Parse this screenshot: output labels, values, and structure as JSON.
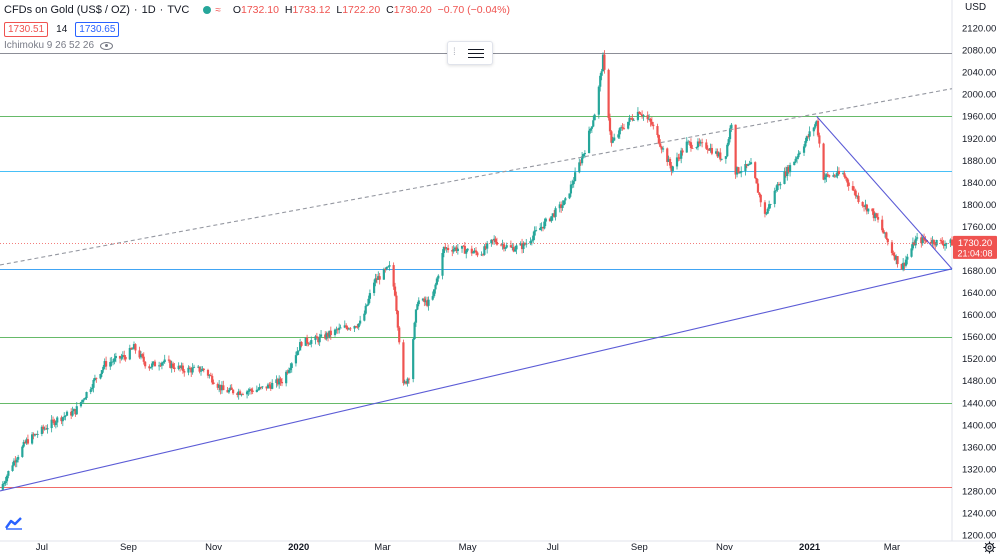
{
  "header": {
    "symbol": "CFDs on Gold (US$ / OZ)",
    "interval": "1D",
    "source": "TVC",
    "ohlc": [
      {
        "k": "O",
        "v": "1732.10"
      },
      {
        "k": "H",
        "v": "1733.12"
      },
      {
        "k": "L",
        "v": "1722.20"
      },
      {
        "k": "C",
        "v": "1730.20"
      }
    ],
    "change": "−0.70 (−0.04%)"
  },
  "quote": {
    "bid": "1730.51",
    "spread": "14",
    "ask": "1730.65"
  },
  "indicator": {
    "label": "Ichimoku 9 26 52 26"
  },
  "price_label": {
    "value": "1730.20",
    "countdown": "21:04:08"
  },
  "currency": "USD",
  "colors": {
    "up": "#26a69a",
    "down": "#ef5350",
    "blue_line": "#5b5bd6",
    "green_line": "#4caf50",
    "lightblue_line": "#29b6f6",
    "red_line": "#ef5350",
    "gray_line": "#787b86"
  },
  "chart_data": {
    "type": "candlestick",
    "title": "CFDs on Gold (US$ / OZ)",
    "y_axis": {
      "min": 1200,
      "max": 2160,
      "ticks": [
        1200,
        1240,
        1280,
        1320,
        1360,
        1400,
        1440,
        1480,
        1520,
        1560,
        1600,
        1640,
        1680,
        1720,
        1760,
        1800,
        1840,
        1880,
        1920,
        1960,
        2000,
        2040,
        2080,
        2120
      ]
    },
    "x_axis": {
      "start": "2019-06-01",
      "end": "2021-04-13",
      "labels": [
        {
          "date": "2019-07-01",
          "label": "Jul"
        },
        {
          "date": "2019-09-01",
          "label": "Sep"
        },
        {
          "date": "2019-11-01",
          "label": "Nov"
        },
        {
          "date": "2020-01-01",
          "label": "2020"
        },
        {
          "date": "2020-03-01",
          "label": "Mar"
        },
        {
          "date": "2020-05-01",
          "label": "May"
        },
        {
          "date": "2020-07-01",
          "label": "Jul"
        },
        {
          "date": "2020-09-01",
          "label": "Sep"
        },
        {
          "date": "2020-11-01",
          "label": "Nov"
        },
        {
          "date": "2021-01-01",
          "label": "2021"
        },
        {
          "date": "2021-03-01",
          "label": "Mar"
        }
      ]
    },
    "price_path": [
      [
        "2019-06-01",
        1282
      ],
      [
        "2019-06-10",
        1330
      ],
      [
        "2019-06-20",
        1370
      ],
      [
        "2019-07-01",
        1390
      ],
      [
        "2019-07-12",
        1410
      ],
      [
        "2019-07-25",
        1425
      ],
      [
        "2019-08-05",
        1470
      ],
      [
        "2019-08-15",
        1510
      ],
      [
        "2019-08-30",
        1525
      ],
      [
        "2019-09-05",
        1540
      ],
      [
        "2019-09-15",
        1505
      ],
      [
        "2019-09-25",
        1515
      ],
      [
        "2019-10-10",
        1500
      ],
      [
        "2019-10-25",
        1500
      ],
      [
        "2019-11-08",
        1462
      ],
      [
        "2019-11-20",
        1460
      ],
      [
        "2019-12-05",
        1465
      ],
      [
        "2019-12-20",
        1480
      ],
      [
        "2020-01-03",
        1550
      ],
      [
        "2020-01-15",
        1555
      ],
      [
        "2020-02-01",
        1575
      ],
      [
        "2020-02-15",
        1585
      ],
      [
        "2020-02-24",
        1660
      ],
      [
        "2020-03-06",
        1685
      ],
      [
        "2020-03-10",
        1640
      ],
      [
        "2020-03-16",
        1470
      ],
      [
        "2020-03-20",
        1490
      ],
      [
        "2020-03-26",
        1625
      ],
      [
        "2020-04-05",
        1620
      ],
      [
        "2020-04-14",
        1720
      ],
      [
        "2020-04-25",
        1720
      ],
      [
        "2020-05-10",
        1710
      ],
      [
        "2020-05-20",
        1735
      ],
      [
        "2020-06-01",
        1720
      ],
      [
        "2020-06-10",
        1725
      ],
      [
        "2020-06-25",
        1765
      ],
      [
        "2020-07-10",
        1805
      ],
      [
        "2020-07-24",
        1900
      ],
      [
        "2020-08-01",
        1975
      ],
      [
        "2020-08-06",
        2065
      ],
      [
        "2020-08-12",
        1910
      ],
      [
        "2020-08-20",
        1940
      ],
      [
        "2020-09-01",
        1970
      ],
      [
        "2020-09-10",
        1945
      ],
      [
        "2020-09-24",
        1865
      ],
      [
        "2020-10-05",
        1910
      ],
      [
        "2020-10-20",
        1905
      ],
      [
        "2020-11-01",
        1880
      ],
      [
        "2020-11-06",
        1950
      ],
      [
        "2020-11-09",
        1860
      ],
      [
        "2020-11-20",
        1870
      ],
      [
        "2020-11-30",
        1780
      ],
      [
        "2020-12-10",
        1840
      ],
      [
        "2020-12-21",
        1880
      ],
      [
        "2021-01-06",
        1950
      ],
      [
        "2021-01-11",
        1850
      ],
      [
        "2021-01-25",
        1855
      ],
      [
        "2021-02-05",
        1810
      ],
      [
        "2021-02-18",
        1775
      ],
      [
        "2021-03-01",
        1715
      ],
      [
        "2021-03-08",
        1685
      ],
      [
        "2021-03-18",
        1735
      ],
      [
        "2021-03-26",
        1735
      ],
      [
        "2021-04-05",
        1730
      ],
      [
        "2021-04-13",
        1730
      ]
    ],
    "horizontal_lines": [
      {
        "price": 2075,
        "color": "#787b86"
      },
      {
        "price": 1960,
        "color": "#4caf50"
      },
      {
        "price": 1860,
        "color": "#29b6f6"
      },
      {
        "price": 1683,
        "color": "#2196f3"
      },
      {
        "price": 1560,
        "color": "#4caf50"
      },
      {
        "price": 1440,
        "color": "#4caf50"
      },
      {
        "price": 1288,
        "color": "#ef5350"
      }
    ],
    "trend_lines": [
      {
        "from": [
          "2019-06-01",
          1280
        ],
        "to": [
          "2021-04-13",
          1683
        ],
        "color": "#5b5bd6",
        "style": "solid"
      },
      {
        "from": [
          "2021-01-06",
          1960
        ],
        "to": [
          "2021-04-13",
          1683
        ],
        "color": "#5b5bd6",
        "style": "solid"
      },
      {
        "from": [
          "2019-06-01",
          1690
        ],
        "to": [
          "2021-04-13",
          2010
        ],
        "color": "#9598a1",
        "style": "dashed"
      }
    ],
    "last_price": 1730.2
  }
}
